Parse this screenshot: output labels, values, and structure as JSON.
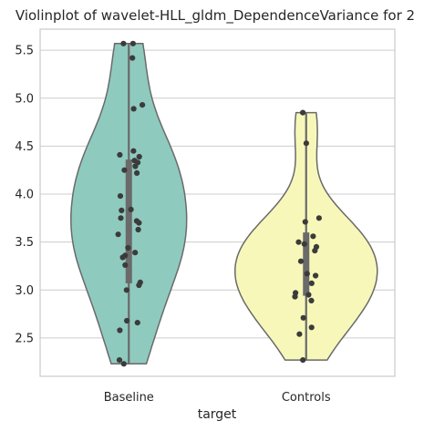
{
  "chart_data": {
    "type": "violin",
    "title": "Violinplot of wavelet-HLL_gldm_DependenceVariance for 2",
    "xlabel": "target",
    "ylabel": "",
    "categories": [
      "Baseline",
      "Controls"
    ],
    "ylim": [
      2.1,
      5.72
    ],
    "yticks": [
      2.5,
      3.0,
      3.5,
      4.0,
      4.5,
      5.0,
      5.5
    ],
    "ytick_labels": [
      "2.5",
      "3.0",
      "3.5",
      "4.0",
      "4.5",
      "5.0",
      "5.5"
    ],
    "grid": true,
    "series": [
      {
        "category": "Baseline",
        "color": "#8fcabf",
        "range": [
          2.23,
          5.57
        ],
        "quartiles": [
          3.07,
          4.36
        ],
        "points": [
          5.57,
          5.57,
          5.42,
          4.93,
          4.89,
          4.45,
          4.41,
          4.39,
          4.35,
          4.33,
          4.29,
          4.25,
          4.22,
          3.98,
          3.84,
          3.83,
          3.75,
          3.72,
          3.7,
          3.63,
          3.58,
          3.44,
          3.39,
          3.36,
          3.34,
          3.26,
          3.08,
          3.05,
          3.0,
          2.68,
          2.66,
          2.58,
          2.27,
          2.23
        ]
      },
      {
        "category": "Controls",
        "color": "#f7f7b9",
        "range": [
          2.27,
          4.85
        ],
        "quartiles": [
          2.94,
          3.6
        ],
        "points": [
          4.85,
          4.53,
          3.75,
          3.71,
          3.56,
          3.5,
          3.48,
          3.45,
          3.41,
          3.3,
          3.17,
          3.15,
          3.07,
          2.97,
          2.95,
          2.93,
          2.89,
          2.71,
          2.61,
          2.54,
          2.27
        ]
      }
    ]
  }
}
